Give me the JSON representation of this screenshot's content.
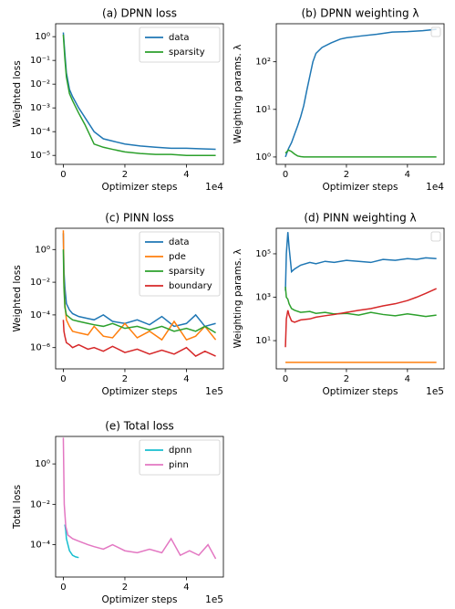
{
  "chart_data": [
    {
      "type": "line",
      "title": "(a) DPNN loss",
      "xlabel": "Optimizer steps",
      "ylabel": "Weighted loss",
      "x_offset_label": "1e4",
      "yscale": "log",
      "legend": "upper right",
      "xlim": [
        -0.25,
        5.2
      ],
      "xticks": [
        0,
        2,
        4
      ],
      "ylim": [
        4.2e-06,
        3.5
      ],
      "yticks": [
        {
          "value": 1,
          "label": "10⁰"
        },
        {
          "value": 0.1,
          "label": "10⁻¹"
        },
        {
          "value": 0.01,
          "label": "10⁻²"
        },
        {
          "value": 0.001,
          "label": "10⁻³"
        },
        {
          "value": 0.0001,
          "label": "10⁻⁴"
        },
        {
          "value": 1e-05,
          "label": "10⁻⁵"
        }
      ],
      "x": [
        0,
        0.05,
        0.1,
        0.2,
        0.3,
        0.5,
        0.7,
        1,
        1.3,
        1.6,
        2,
        2.5,
        3,
        3.5,
        4,
        4.5,
        4.95
      ],
      "series": [
        {
          "name": "data",
          "color": "#1f77b4",
          "values": [
            1.5,
            0.2,
            0.03,
            0.006,
            0.003,
            0.001,
            0.0004,
            0.0001,
            5e-05,
            4e-05,
            3e-05,
            2.5e-05,
            2.2e-05,
            2e-05,
            2e-05,
            1.9e-05,
            1.8e-05
          ]
        },
        {
          "name": "sparsity",
          "color": "#2ca02c",
          "values": [
            1.2,
            0.12,
            0.02,
            0.004,
            0.002,
            0.0006,
            0.0002,
            3e-05,
            2.2e-05,
            1.8e-05,
            1.4e-05,
            1.2e-05,
            1.1e-05,
            1.1e-05,
            1e-05,
            1e-05,
            1e-05
          ]
        }
      ]
    },
    {
      "type": "line",
      "title": "(b) DPNN weighting λ",
      "xlabel": "Optimizer steps",
      "ylabel": "Weighting params. λ",
      "x_offset_label": "1e4",
      "yscale": "log",
      "legend": "upper right",
      "xlim": [
        -0.3,
        5.2
      ],
      "xticks": [
        0,
        2,
        4
      ],
      "ylim": [
        0.7,
        630
      ],
      "yticks": [
        {
          "value": 1,
          "label": "10⁰"
        },
        {
          "value": 10,
          "label": "10¹"
        },
        {
          "value": 100,
          "label": "10²"
        }
      ],
      "x": [
        0,
        0.1,
        0.2,
        0.3,
        0.4,
        0.5,
        0.6,
        0.7,
        0.8,
        0.9,
        1,
        1.2,
        1.5,
        1.8,
        2,
        2.5,
        3,
        3.5,
        4,
        4.5,
        4.95
      ],
      "series": [
        {
          "color": "#1f77b4",
          "values": [
            1,
            1.5,
            2,
            3,
            4.5,
            7,
            12,
            25,
            50,
            100,
            150,
            200,
            250,
            300,
            320,
            350,
            380,
            420,
            430,
            450,
            480
          ]
        },
        {
          "color": "#2ca02c",
          "values": [
            1.2,
            1.4,
            1.3,
            1.15,
            1.05,
            1.02,
            1,
            1,
            1,
            1,
            1,
            1,
            1,
            1,
            1,
            1,
            1,
            1,
            1,
            1,
            1
          ]
        }
      ]
    },
    {
      "type": "line",
      "title": "(c) PINN loss",
      "xlabel": "Optimizer steps",
      "ylabel": "Weighted loss",
      "x_offset_label": "1e5",
      "yscale": "log",
      "legend": "upper right",
      "xlim": [
        -0.25,
        5.2
      ],
      "xticks": [
        0,
        2,
        4
      ],
      "ylim": [
        5e-08,
        20
      ],
      "yticks": [
        {
          "value": 1,
          "label": "10⁰"
        },
        {
          "value": 0.01,
          "label": "10⁻²"
        },
        {
          "value": 0.0001,
          "label": "10⁻⁴"
        },
        {
          "value": 1e-06,
          "label": "10⁻⁶"
        }
      ],
      "x": [
        0,
        0.02,
        0.05,
        0.1,
        0.2,
        0.3,
        0.5,
        0.8,
        1,
        1.3,
        1.6,
        2,
        2.4,
        2.8,
        3.2,
        3.6,
        4,
        4.3,
        4.6,
        4.95
      ],
      "series": [
        {
          "name": "data",
          "color": "#1f77b4",
          "values": [
            10,
            0.05,
            0.005,
            0.0005,
            0.0002,
            0.00012,
            8e-05,
            6e-05,
            5e-05,
            0.0001,
            4e-05,
            3e-05,
            5e-05,
            2.5e-05,
            8e-05,
            2e-05,
            3e-05,
            0.0001,
            2e-05,
            3e-05
          ]
        },
        {
          "name": "pde",
          "color": "#ff7f0e",
          "values": [
            15,
            0.01,
            0.0005,
            5e-05,
            2e-05,
            1e-05,
            8e-06,
            6e-06,
            2e-05,
            5e-06,
            4e-06,
            3e-05,
            4e-06,
            1e-05,
            3e-06,
            4e-05,
            3e-06,
            5e-06,
            2e-05,
            3e-06
          ]
        },
        {
          "name": "sparsity",
          "color": "#2ca02c",
          "values": [
            1,
            0.005,
            0.0003,
            0.0001,
            7e-05,
            5e-05,
            4e-05,
            3e-05,
            2.5e-05,
            2e-05,
            3e-05,
            1.5e-05,
            2e-05,
            1.2e-05,
            2e-05,
            1e-05,
            1.5e-05,
            1e-05,
            2e-05,
            8e-06
          ]
        },
        {
          "name": "boundary",
          "color": "#d62728",
          "values": [
            5e-05,
            1e-05,
            5e-06,
            2e-06,
            1.5e-06,
            1e-06,
            1.5e-06,
            8e-07,
            1e-06,
            6e-07,
            1.2e-06,
            5e-07,
            8e-07,
            4e-07,
            7e-07,
            4e-07,
            1e-06,
            3e-07,
            6e-07,
            3e-07
          ]
        }
      ]
    },
    {
      "type": "line",
      "title": "(d) PINN weighting λ",
      "xlabel": "Optimizer steps",
      "ylabel": "Weighting params. λ",
      "x_offset_label": "1e5",
      "yscale": "log",
      "legend": "upper right",
      "xlim": [
        -0.3,
        5.2
      ],
      "xticks": [
        0,
        2,
        4
      ],
      "ylim": [
        0.5,
        1500000
      ],
      "yticks": [
        {
          "value": 10,
          "label": "10¹"
        },
        {
          "value": 1000,
          "label": "10³"
        },
        {
          "value": 100000,
          "label": "10⁵"
        }
      ],
      "x": [
        0,
        0.03,
        0.08,
        0.12,
        0.2,
        0.3,
        0.5,
        0.8,
        1,
        1.3,
        1.6,
        2,
        2.4,
        2.8,
        3.2,
        3.6,
        4,
        4.3,
        4.6,
        4.95
      ],
      "series": [
        {
          "color": "#1f77b4",
          "values": [
            2000,
            100000,
            1000000,
            200000,
            15000,
            20000,
            30000,
            40000,
            35000,
            45000,
            40000,
            50000,
            45000,
            40000,
            55000,
            50000,
            60000,
            55000,
            65000,
            60000
          ]
        },
        {
          "color": "#ff7f0e",
          "values": [
            1,
            1,
            1,
            1,
            1,
            1,
            1,
            1,
            1,
            1,
            1,
            1,
            1,
            1,
            1,
            1,
            1,
            1,
            1,
            1
          ]
        },
        {
          "color": "#2ca02c",
          "values": [
            3000,
            1000,
            800,
            500,
            300,
            250,
            200,
            220,
            180,
            200,
            170,
            180,
            150,
            200,
            160,
            140,
            170,
            150,
            130,
            150
          ]
        },
        {
          "color": "#d62728",
          "values": [
            5,
            100,
            250,
            150,
            80,
            70,
            90,
            100,
            120,
            140,
            160,
            200,
            250,
            300,
            400,
            500,
            700,
            1000,
            1500,
            2500
          ]
        }
      ]
    },
    {
      "type": "line",
      "title": "(e) Total loss",
      "xlabel": "Optimizer steps",
      "ylabel": "Total loss",
      "x_offset_label": "1e5",
      "yscale": "log",
      "legend": "upper right",
      "xlim": [
        -0.25,
        5.2
      ],
      "xticks": [
        0,
        2,
        4
      ],
      "ylim": [
        2.5e-06,
        23
      ],
      "yticks": [
        {
          "value": 1,
          "label": "10⁰"
        },
        {
          "value": 0.01,
          "label": "10⁻²"
        },
        {
          "value": 0.0001,
          "label": "10⁻⁴"
        }
      ],
      "series": [
        {
          "name": "dpnn",
          "color": "#17becf",
          "x": [
            0.05,
            0.08,
            0.1,
            0.15,
            0.2,
            0.3,
            0.4,
            0.5
          ],
          "values": [
            0.001,
            0.0005,
            0.0002,
            0.0001,
            5e-05,
            3e-05,
            2.5e-05,
            2.3e-05
          ]
        },
        {
          "name": "pinn",
          "color": "#e377c2",
          "x": [
            0,
            0.03,
            0.08,
            0.15,
            0.3,
            0.5,
            0.8,
            1,
            1.3,
            1.6,
            2,
            2.4,
            2.8,
            3.2,
            3.5,
            3.8,
            4.1,
            4.4,
            4.7,
            4.95
          ],
          "values": [
            20,
            0.01,
            0.0008,
            0.0003,
            0.0002,
            0.00015,
            0.0001,
            8e-05,
            6e-05,
            0.0001,
            5e-05,
            4e-05,
            6e-05,
            4e-05,
            0.0002,
            3e-05,
            5e-05,
            3e-05,
            0.0001,
            2e-05
          ]
        }
      ]
    }
  ]
}
